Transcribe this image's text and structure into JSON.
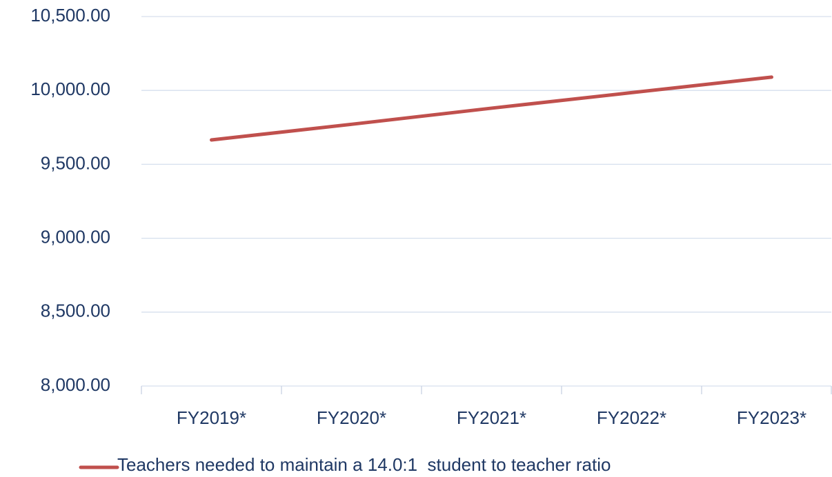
{
  "chart_data": {
    "type": "line",
    "categories": [
      "FY2019*",
      "FY2020*",
      "FY2021*",
      "FY2022*",
      "FY2023*"
    ],
    "series": [
      {
        "name": "Teachers needed to maintain a 14.0:1  student to teacher ratio",
        "color": "#c0504d",
        "values": [
          9665,
          9771,
          9880,
          9985,
          10090
        ]
      }
    ],
    "ylim": [
      8000,
      10500
    ],
    "yticks": [
      {
        "value": 8000,
        "label": "8,000.00"
      },
      {
        "value": 8500,
        "label": "8,500.00"
      },
      {
        "value": 9000,
        "label": "9,000.00"
      },
      {
        "value": 9500,
        "label": "9,500.00"
      },
      {
        "value": 10000,
        "label": "10,000.00"
      },
      {
        "value": 10500,
        "label": "10,500.00"
      }
    ],
    "grid": true,
    "legend": "bottom"
  }
}
